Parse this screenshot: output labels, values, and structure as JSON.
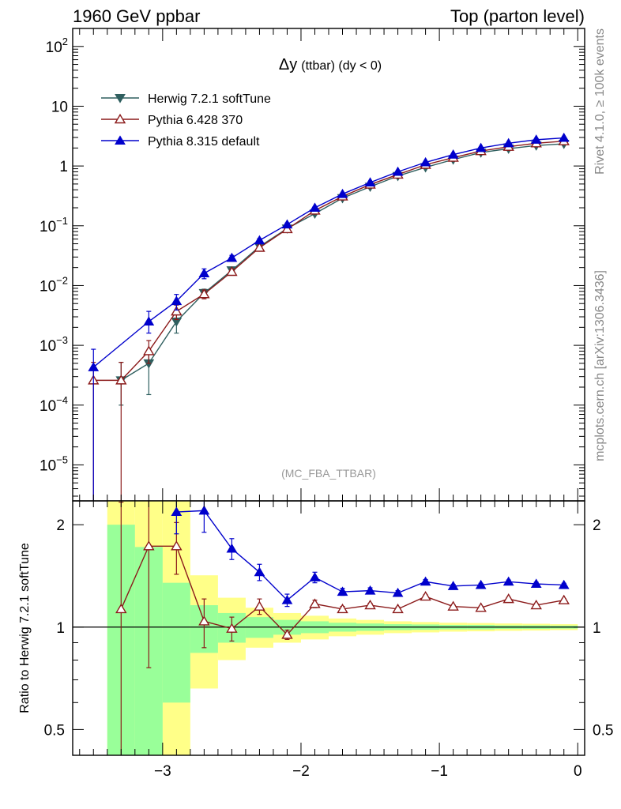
{
  "header": {
    "left": "1960 GeV ppbar",
    "right": "Top (parton level)"
  },
  "side_labels": {
    "rivet": "Rivet 4.1.0, ≥ 100k events",
    "mcplots": "mcplots.cern.ch [arXiv:1306.3436]"
  },
  "chart_data": [
    {
      "type": "line",
      "panel": "main",
      "title": "Δy",
      "title_suffix": "(ttbar) (dy < 0)",
      "analysis_tag": "(MC_FBA_TTBAR)",
      "xlabel": "",
      "ylabel": "",
      "xlim": [
        -3.65,
        0.05
      ],
      "ylim": [
        2.5e-06,
        200
      ],
      "yscale": "log",
      "y_ticks": [
        {
          "base": "10",
          "exp": "2",
          "value": 100
        },
        {
          "base": "10",
          "exp": "",
          "value": 10
        },
        {
          "base": "1",
          "exp": "",
          "value": 1
        },
        {
          "base": "10",
          "exp": "−1",
          "value": 0.1
        },
        {
          "base": "10",
          "exp": "−2",
          "value": 0.01
        },
        {
          "base": "10",
          "exp": "−3",
          "value": 0.001
        },
        {
          "base": "10",
          "exp": "−4",
          "value": 0.0001
        },
        {
          "base": "10",
          "exp": "−5",
          "value": 1e-05
        }
      ],
      "series": [
        {
          "name": "Herwig 7.2.1 softTune",
          "color": "#2f5f5f",
          "marker": "triangle-down-filled",
          "x": [
            -3.3,
            -3.1,
            -2.9,
            -2.7,
            -2.5,
            -2.3,
            -2.1,
            -1.9,
            -1.7,
            -1.5,
            -1.3,
            -1.1,
            -0.9,
            -0.7,
            -0.5,
            -0.3,
            -0.1
          ],
          "y": [
            0.00026,
            0.0005,
            0.0025,
            0.0075,
            0.018,
            0.045,
            0.09,
            0.16,
            0.29,
            0.45,
            0.68,
            0.95,
            1.28,
            1.68,
            1.95,
            2.2,
            2.35
          ],
          "err_low": [
            0.00016,
            0.00035,
            0.0009,
            0.0012,
            0.0018,
            0.003,
            0.005,
            0.008,
            0.01,
            0.015,
            0.02,
            0.03,
            0.03,
            0.04,
            0.04,
            0.04,
            0.04
          ],
          "err_high": [
            0.00026,
            0.00025,
            0.0009,
            0.0012,
            0.0018,
            0.003,
            0.005,
            0.008,
            0.01,
            0.015,
            0.02,
            0.03,
            0.03,
            0.04,
            0.04,
            0.04,
            0.04
          ]
        },
        {
          "name": "Pythia 6.428 370",
          "color": "#8b1a1a",
          "marker": "triangle-up-open",
          "x": [
            -3.5,
            -3.3,
            -3.1,
            -2.9,
            -2.7,
            -2.5,
            -2.3,
            -2.1,
            -1.9,
            -1.7,
            -1.5,
            -1.3,
            -1.1,
            -0.9,
            -0.7,
            -0.5,
            -0.3,
            -0.1
          ],
          "y": [
            0.00026,
            0.00026,
            0.0008,
            0.0037,
            0.0072,
            0.017,
            0.043,
            0.088,
            0.18,
            0.31,
            0.49,
            0.72,
            1.05,
            1.38,
            1.78,
            2.1,
            2.4,
            2.6
          ],
          "err_low": [
            0.000259,
            0.000259,
            0.0003,
            0.001,
            0.0012,
            0.0017,
            0.003,
            0.005,
            0.008,
            0.01,
            0.015,
            0.02,
            0.03,
            0.03,
            0.04,
            0.04,
            0.04,
            0.04
          ],
          "err_high": [
            0.00026,
            0.00026,
            0.0004,
            0.001,
            0.0012,
            0.0017,
            0.003,
            0.005,
            0.008,
            0.01,
            0.015,
            0.02,
            0.03,
            0.03,
            0.04,
            0.04,
            0.04,
            0.04
          ]
        },
        {
          "name": "Pythia 8.315 default",
          "color": "#0000cc",
          "marker": "triangle-up-filled",
          "x": [
            -3.5,
            -3.1,
            -2.9,
            -2.7,
            -2.5,
            -2.3,
            -2.1,
            -1.9,
            -1.7,
            -1.5,
            -1.3,
            -1.1,
            -0.9,
            -0.7,
            -0.5,
            -0.3,
            -0.1
          ],
          "y": [
            0.00043,
            0.0025,
            0.0055,
            0.016,
            0.029,
            0.057,
            0.105,
            0.2,
            0.34,
            0.53,
            0.8,
            1.15,
            1.55,
            2.0,
            2.4,
            2.75,
            2.95
          ],
          "err_low": [
            0.000429,
            0.0009,
            0.0016,
            0.003,
            0.003,
            0.004,
            0.006,
            0.009,
            0.012,
            0.016,
            0.022,
            0.03,
            0.035,
            0.04,
            0.045,
            0.045,
            0.045
          ],
          "err_high": [
            0.00043,
            0.0012,
            0.0016,
            0.003,
            0.003,
            0.004,
            0.006,
            0.009,
            0.012,
            0.016,
            0.022,
            0.03,
            0.035,
            0.04,
            0.045,
            0.045,
            0.045
          ]
        }
      ]
    },
    {
      "type": "line",
      "panel": "ratio",
      "xlabel": "",
      "ylabel": "Ratio to Herwig 7.2.1 softTune",
      "xlim": [
        -3.65,
        0.05
      ],
      "ylim": [
        0.42,
        2.35
      ],
      "yscale": "log",
      "reference_line": 1,
      "y_ticks": [
        {
          "label": "2",
          "value": 2
        },
        {
          "label": "1",
          "value": 1
        },
        {
          "label": "0.5",
          "value": 0.5
        }
      ],
      "x_ticks": [
        {
          "label": "−3",
          "value": -3
        },
        {
          "label": "−2",
          "value": -2
        },
        {
          "label": "−1",
          "value": -1
        },
        {
          "label": "0",
          "value": 0
        }
      ],
      "uncertainty_bands": {
        "bin_edges": [
          -3.4,
          -3.2,
          -3.0,
          -2.8,
          -2.6,
          -2.4,
          -2.2,
          -2.0,
          -1.8,
          -1.6,
          -1.4,
          -1.2,
          -1.0,
          -0.8,
          -0.6,
          -0.4,
          -0.2,
          0.0
        ],
        "inner_color": "#99ff99",
        "inner_low": [
          0.3,
          0.3,
          0.6,
          0.84,
          0.9,
          0.93,
          0.95,
          0.96,
          0.97,
          0.975,
          0.98,
          0.982,
          0.985,
          0.985,
          0.988,
          0.988,
          0.99
        ],
        "inner_high": [
          2.0,
          1.72,
          1.35,
          1.16,
          1.1,
          1.07,
          1.05,
          1.04,
          1.03,
          1.025,
          1.02,
          1.018,
          1.015,
          1.015,
          1.012,
          1.012,
          1.01
        ],
        "outer_color": "#ffff88",
        "outer_low": [
          0.3,
          0.3,
          0.3,
          0.66,
          0.8,
          0.87,
          0.9,
          0.92,
          0.94,
          0.95,
          0.96,
          0.965,
          0.97,
          0.972,
          0.975,
          0.977,
          0.98
        ],
        "outer_high": [
          2.5,
          2.5,
          2.5,
          1.42,
          1.22,
          1.14,
          1.1,
          1.08,
          1.06,
          1.05,
          1.04,
          1.035,
          1.03,
          1.028,
          1.025,
          1.023,
          1.02
        ]
      },
      "series": [
        {
          "name": "Pythia 6.428 370",
          "color": "#8b1a1a",
          "marker": "triangle-up-open",
          "x": [
            -3.3,
            -3.1,
            -2.9,
            -2.7,
            -2.5,
            -2.3,
            -2.1,
            -1.9,
            -1.7,
            -1.5,
            -1.3,
            -1.1,
            -0.9,
            -0.7,
            -0.5,
            -0.3,
            -0.1
          ],
          "y": [
            1.13,
            1.73,
            1.73,
            1.04,
            0.99,
            1.15,
            0.95,
            1.17,
            1.13,
            1.16,
            1.13,
            1.23,
            1.15,
            1.14,
            1.21,
            1.16,
            1.2
          ],
          "err_low": [
            0.8,
            0.97,
            0.3,
            0.17,
            0.08,
            0.06,
            0.03,
            0.03,
            0.02,
            0.015,
            0.015,
            0.015,
            0.012,
            0.012,
            0.012,
            0.012,
            0.012
          ],
          "err_high": [
            1.2,
            0.9,
            0.3,
            0.17,
            0.08,
            0.06,
            0.03,
            0.03,
            0.02,
            0.015,
            0.015,
            0.015,
            0.012,
            0.012,
            0.012,
            0.012,
            0.012
          ]
        },
        {
          "name": "Pythia 8.315 default",
          "color": "#0000cc",
          "marker": "triangle-up-filled",
          "x": [
            -2.9,
            -2.7,
            -2.5,
            -2.3,
            -2.1,
            -1.9,
            -1.7,
            -1.5,
            -1.3,
            -1.1,
            -0.9,
            -0.7,
            -0.5,
            -0.3,
            -0.1
          ],
          "y": [
            2.18,
            2.2,
            1.7,
            1.45,
            1.2,
            1.4,
            1.27,
            1.28,
            1.26,
            1.36,
            1.32,
            1.33,
            1.36,
            1.34,
            1.33
          ],
          "err_low": [
            0.3,
            0.3,
            0.12,
            0.08,
            0.05,
            0.05,
            0.03,
            0.025,
            0.02,
            0.02,
            0.015,
            0.015,
            0.015,
            0.015,
            0.015
          ],
          "err_high": [
            0.3,
            0.3,
            0.12,
            0.08,
            0.05,
            0.05,
            0.03,
            0.025,
            0.02,
            0.02,
            0.015,
            0.015,
            0.015,
            0.015,
            0.015
          ]
        }
      ]
    }
  ]
}
